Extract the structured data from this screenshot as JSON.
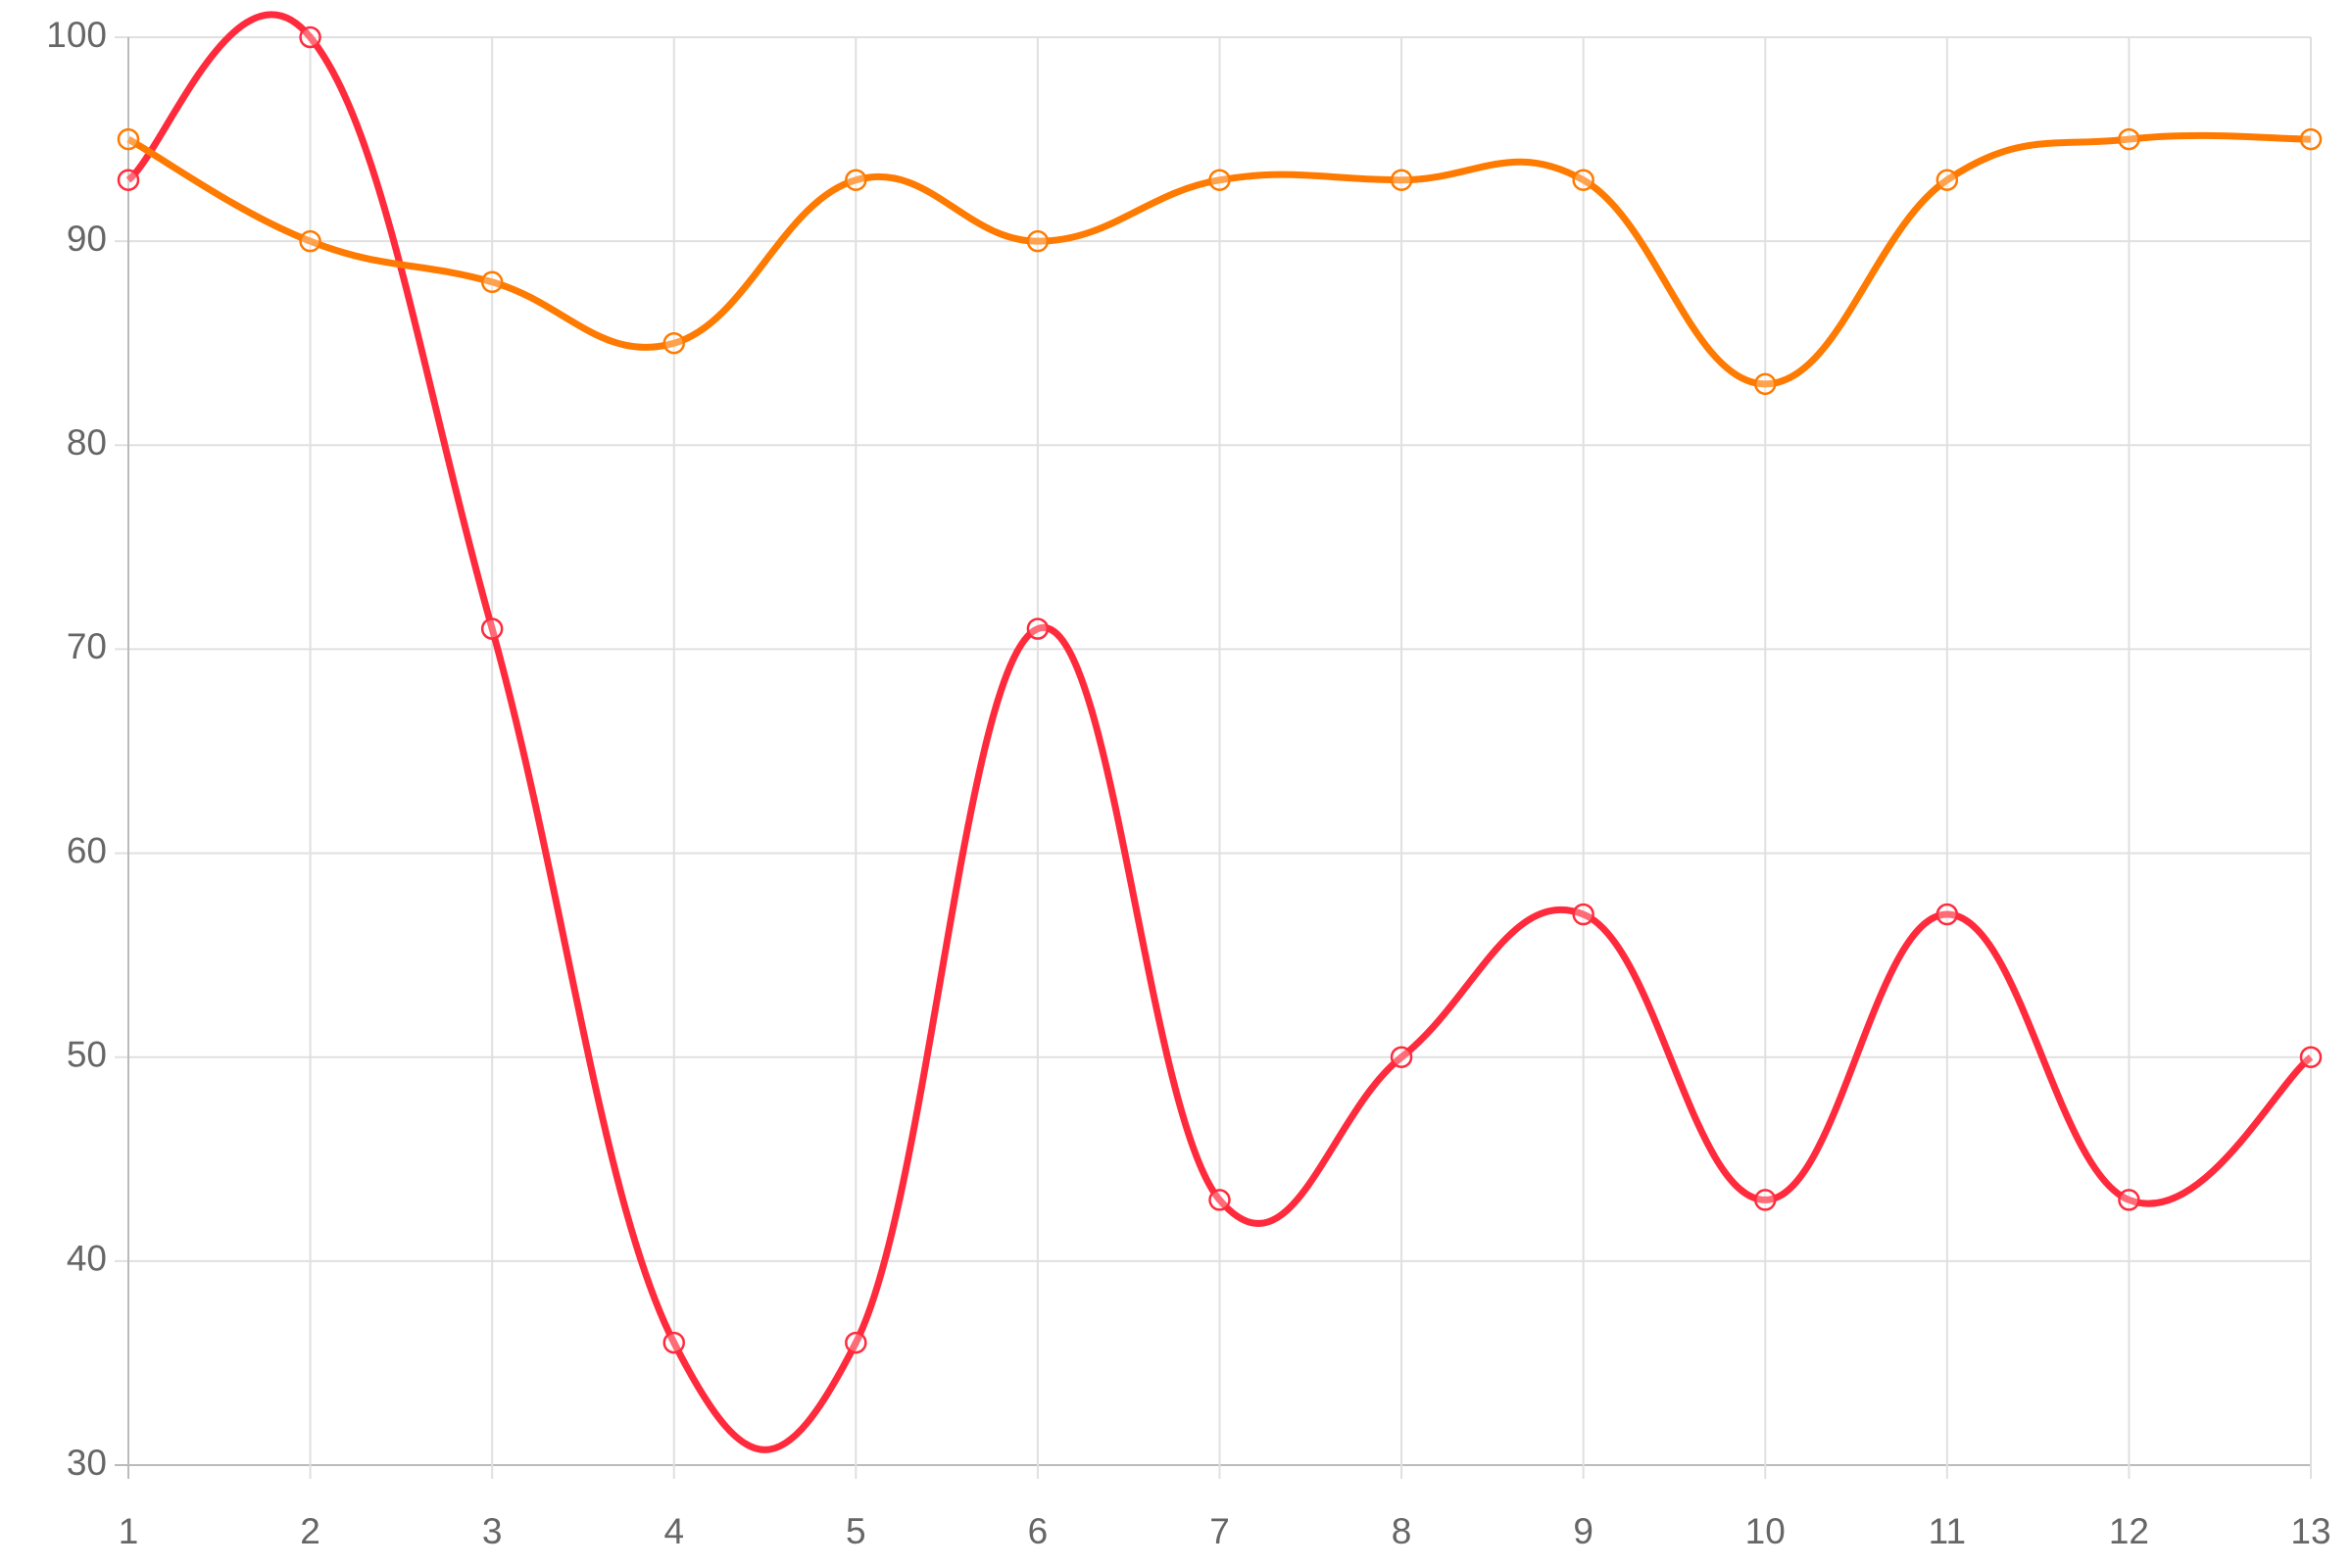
{
  "chart_data": {
    "type": "line",
    "x": [
      1,
      2,
      3,
      4,
      5,
      6,
      7,
      8,
      9,
      10,
      11,
      12,
      13
    ],
    "series": [
      {
        "color": "#ff2b3d",
        "values": [
          93,
          100,
          71,
          36,
          36,
          71,
          43,
          50,
          57,
          43,
          57,
          43,
          50
        ]
      },
      {
        "color": "#ff7a00",
        "values": [
          95,
          90,
          88,
          85,
          93,
          90,
          93,
          93,
          93,
          83,
          93,
          95,
          95
        ]
      }
    ],
    "xlim": [
      1,
      13
    ],
    "xticks": [
      1,
      2,
      3,
      4,
      5,
      6,
      7,
      8,
      9,
      10,
      11,
      12,
      13
    ],
    "ylim": [
      30,
      100
    ],
    "yticks": [
      30,
      40,
      50,
      60,
      70,
      80,
      90,
      100
    ],
    "grid": true,
    "smooth": true
  }
}
